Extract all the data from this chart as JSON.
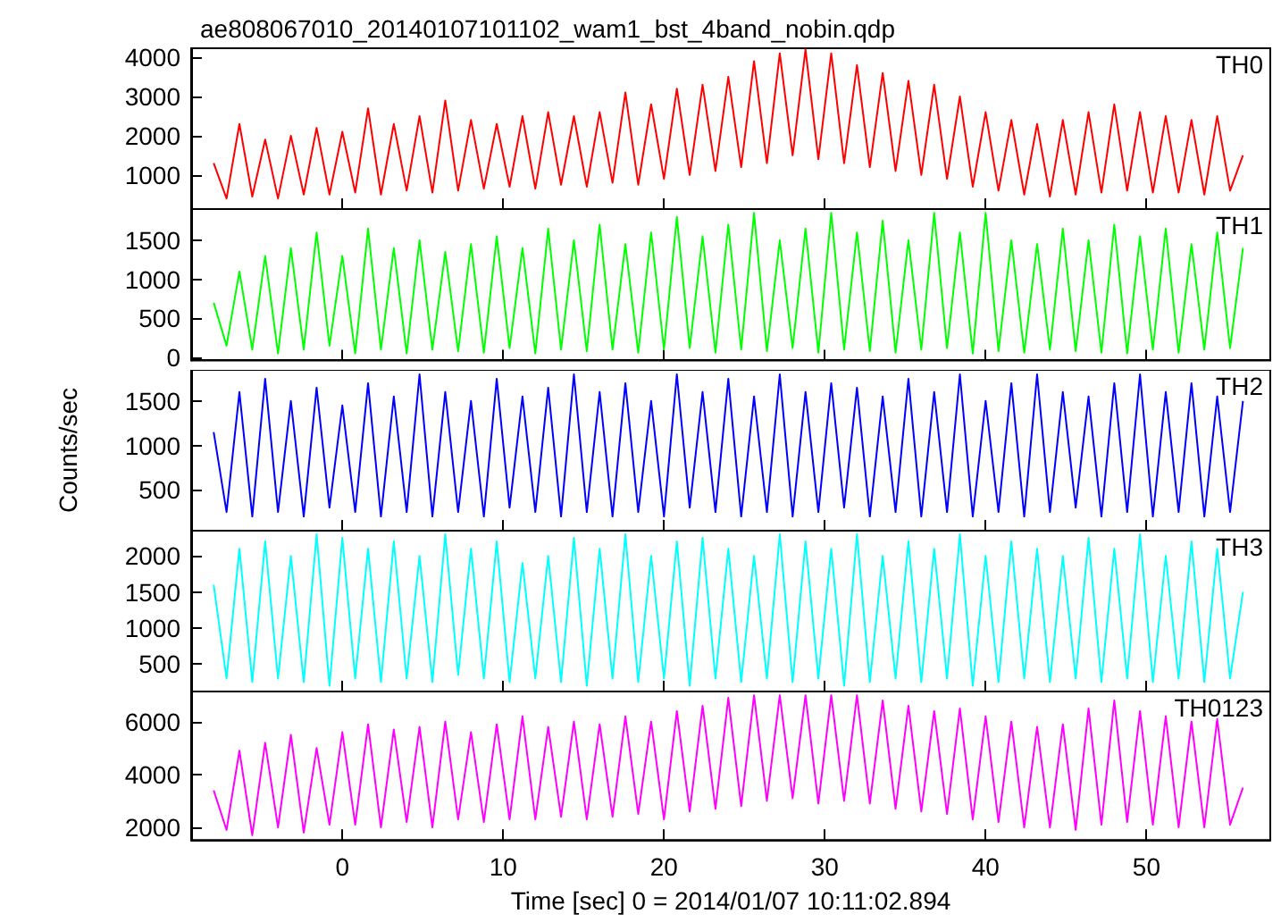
{
  "chart_data": [
    {
      "type": "line",
      "title": "ae808067010_20140107101102_wam1_bst_4band_nobin.qdp",
      "xlim": [
        -9.4,
        57.7
      ],
      "xticks": [
        0,
        10,
        20,
        30,
        40,
        50
      ],
      "ylim": [
        130,
        4230
      ],
      "yticks": [
        1000,
        2000,
        3000,
        4000
      ],
      "tick_labels": "y",
      "grid": false,
      "legend": false,
      "marker": "none",
      "x": [
        -8,
        -7.2,
        -6.4,
        -5.6,
        -4.8,
        -4,
        -3.2,
        -2.4,
        -1.6,
        -0.8,
        0,
        0.8,
        1.6,
        2.4,
        3.2,
        4,
        4.8,
        5.6,
        6.4,
        7.2,
        8,
        8.8,
        9.6,
        10.4,
        11.2,
        12,
        12.8,
        13.6,
        14.4,
        15.2,
        16,
        16.8,
        17.6,
        18.4,
        19.2,
        20,
        20.8,
        21.6,
        22.4,
        23.2,
        24,
        24.8,
        25.6,
        26.4,
        27.2,
        28,
        28.8,
        29.6,
        30.4,
        31.2,
        32,
        32.8,
        33.6,
        34.4,
        35.2,
        36,
        36.8,
        37.6,
        38.4,
        39.2,
        40,
        40.8,
        41.6,
        42.4,
        43.2,
        44,
        44.8,
        45.6,
        46.4,
        47.2,
        48,
        48.8,
        49.6,
        50.4,
        51.2,
        52,
        52.8,
        53.6,
        54.4,
        55.2,
        56
      ],
      "series": [
        {
          "name": "TH0",
          "color": "#ff0000",
          "values": [
            1300,
            400,
            2300,
            450,
            1900,
            400,
            2000,
            500,
            2200,
            500,
            2100,
            550,
            2700,
            500,
            2300,
            600,
            2500,
            550,
            2900,
            600,
            2400,
            650,
            2300,
            700,
            2500,
            650,
            2600,
            750,
            2500,
            700,
            2600,
            800,
            3100,
            750,
            2800,
            900,
            3200,
            1000,
            3300,
            1100,
            3500,
            1200,
            3900,
            1300,
            4100,
            1500,
            4200,
            1400,
            4100,
            1300,
            3800,
            1200,
            3600,
            1100,
            3400,
            1000,
            3300,
            900,
            3000,
            700,
            2600,
            600,
            2400,
            500,
            2300,
            450,
            2400,
            500,
            2600,
            550,
            2800,
            600,
            2600,
            550,
            2500,
            550,
            2400,
            500,
            2500,
            600,
            1500
          ]
        }
      ]
    },
    {
      "type": "line",
      "xlim": [
        -9.4,
        57.7
      ],
      "xticks": [
        0,
        10,
        20,
        30,
        40,
        50
      ],
      "ylim": [
        -40,
        1900
      ],
      "yticks": [
        0,
        500,
        1000,
        1500
      ],
      "tick_labels": "y",
      "grid": false,
      "legend": false,
      "marker": "none",
      "x": [
        -8,
        -7.2,
        -6.4,
        -5.6,
        -4.8,
        -4,
        -3.2,
        -2.4,
        -1.6,
        -0.8,
        0,
        0.8,
        1.6,
        2.4,
        3.2,
        4,
        4.8,
        5.6,
        6.4,
        7.2,
        8,
        8.8,
        9.6,
        10.4,
        11.2,
        12,
        12.8,
        13.6,
        14.4,
        15.2,
        16,
        16.8,
        17.6,
        18.4,
        19.2,
        20,
        20.8,
        21.6,
        22.4,
        23.2,
        24,
        24.8,
        25.6,
        26.4,
        27.2,
        28,
        28.8,
        29.6,
        30.4,
        31.2,
        32,
        32.8,
        33.6,
        34.4,
        35.2,
        36,
        36.8,
        37.6,
        38.4,
        39.2,
        40,
        40.8,
        41.6,
        42.4,
        43.2,
        44,
        44.8,
        45.6,
        46.4,
        47.2,
        48,
        48.8,
        49.6,
        50.4,
        51.2,
        52,
        52.8,
        53.6,
        54.4,
        55.2,
        56
      ],
      "series": [
        {
          "name": "TH1",
          "color": "#00ff00",
          "values": [
            700,
            150,
            1100,
            100,
            1300,
            50,
            1400,
            100,
            1600,
            150,
            1300,
            50,
            1650,
            100,
            1400,
            50,
            1500,
            100,
            1350,
            80,
            1450,
            60,
            1550,
            120,
            1400,
            50,
            1650,
            100,
            1500,
            80,
            1700,
            100,
            1450,
            60,
            1600,
            100,
            1800,
            120,
            1550,
            60,
            1700,
            100,
            1850,
            80,
            1500,
            120,
            1650,
            60,
            1850,
            100,
            1600,
            80,
            1750,
            60,
            1500,
            100,
            1850,
            120,
            1600,
            50,
            1850,
            80,
            1500,
            60,
            1450,
            100,
            1650,
            80,
            1500,
            60,
            1700,
            50,
            1550,
            100,
            1650,
            60,
            1450,
            100,
            1600,
            120,
            1400
          ]
        }
      ]
    },
    {
      "type": "line",
      "ylabel": "Counts/sec",
      "xlim": [
        -9.4,
        57.7
      ],
      "xticks": [
        0,
        10,
        20,
        30,
        40,
        50
      ],
      "ylim": [
        40,
        1850
      ],
      "yticks": [
        500,
        1000,
        1500
      ],
      "tick_labels": "y",
      "grid": false,
      "legend": false,
      "marker": "none",
      "x": [
        -8,
        -7.2,
        -6.4,
        -5.6,
        -4.8,
        -4,
        -3.2,
        -2.4,
        -1.6,
        -0.8,
        0,
        0.8,
        1.6,
        2.4,
        3.2,
        4,
        4.8,
        5.6,
        6.4,
        7.2,
        8,
        8.8,
        9.6,
        10.4,
        11.2,
        12,
        12.8,
        13.6,
        14.4,
        15.2,
        16,
        16.8,
        17.6,
        18.4,
        19.2,
        20,
        20.8,
        21.6,
        22.4,
        23.2,
        24,
        24.8,
        25.6,
        26.4,
        27.2,
        28,
        28.8,
        29.6,
        30.4,
        31.2,
        32,
        32.8,
        33.6,
        34.4,
        35.2,
        36,
        36.8,
        37.6,
        38.4,
        39.2,
        40,
        40.8,
        41.6,
        42.4,
        43.2,
        44,
        44.8,
        45.6,
        46.4,
        47.2,
        48,
        48.8,
        49.6,
        50.4,
        51.2,
        52,
        52.8,
        53.6,
        54.4,
        55.2,
        56
      ],
      "series": [
        {
          "name": "TH2",
          "color": "#0000ff",
          "values": [
            1150,
            250,
            1600,
            200,
            1750,
            250,
            1500,
            200,
            1650,
            300,
            1450,
            250,
            1700,
            200,
            1550,
            250,
            1800,
            200,
            1600,
            250,
            1500,
            200,
            1750,
            300,
            1550,
            250,
            1650,
            200,
            1800,
            250,
            1600,
            200,
            1700,
            250,
            1500,
            200,
            1800,
            300,
            1600,
            250,
            1750,
            200,
            1550,
            250,
            1800,
            200,
            1600,
            250,
            1700,
            300,
            1650,
            200,
            1550,
            250,
            1750,
            200,
            1600,
            250,
            1800,
            200,
            1500,
            250,
            1700,
            200,
            1800,
            250,
            1600,
            300,
            1550,
            200,
            1700,
            250,
            1800,
            200,
            1600,
            250,
            1700,
            200,
            1550,
            250,
            1500
          ]
        }
      ]
    },
    {
      "type": "line",
      "xlim": [
        -9.4,
        57.7
      ],
      "xticks": [
        0,
        10,
        20,
        30,
        40,
        50
      ],
      "ylim": [
        120,
        2350
      ],
      "yticks": [
        500,
        1000,
        1500,
        2000
      ],
      "tick_labels": "y",
      "grid": false,
      "legend": false,
      "marker": "none",
      "x": [
        -8,
        -7.2,
        -6.4,
        -5.6,
        -4.8,
        -4,
        -3.2,
        -2.4,
        -1.6,
        -0.8,
        0,
        0.8,
        1.6,
        2.4,
        3.2,
        4,
        4.8,
        5.6,
        6.4,
        7.2,
        8,
        8.8,
        9.6,
        10.4,
        11.2,
        12,
        12.8,
        13.6,
        14.4,
        15.2,
        16,
        16.8,
        17.6,
        18.4,
        19.2,
        20,
        20.8,
        21.6,
        22.4,
        23.2,
        24,
        24.8,
        25.6,
        26.4,
        27.2,
        28,
        28.8,
        29.6,
        30.4,
        31.2,
        32,
        32.8,
        33.6,
        34.4,
        35.2,
        36,
        36.8,
        37.6,
        38.4,
        39.2,
        40,
        40.8,
        41.6,
        42.4,
        43.2,
        44,
        44.8,
        45.6,
        46.4,
        47.2,
        48,
        48.8,
        49.6,
        50.4,
        51.2,
        52,
        52.8,
        53.6,
        54.4,
        55.2,
        56
      ],
      "series": [
        {
          "name": "TH3",
          "color": "#00ffff",
          "values": [
            1600,
            300,
            2100,
            250,
            2200,
            300,
            2000,
            250,
            2300,
            200,
            2250,
            300,
            2100,
            250,
            2200,
            300,
            2000,
            250,
            2300,
            350,
            2100,
            300,
            2200,
            250,
            1900,
            300,
            2000,
            250,
            2250,
            200,
            2100,
            300,
            2300,
            250,
            2000,
            300,
            2200,
            200,
            2250,
            300,
            2100,
            250,
            2000,
            300,
            2300,
            250,
            2200,
            300,
            2100,
            200,
            2300,
            250,
            2000,
            300,
            2200,
            250,
            2100,
            300,
            2300,
            200,
            2000,
            250,
            2200,
            300,
            2100,
            250,
            2000,
            300,
            2250,
            250,
            2100,
            300,
            2300,
            250,
            2000,
            300,
            2200,
            250,
            2100,
            300,
            1500
          ]
        }
      ]
    },
    {
      "type": "line",
      "xlabel": "Time [sec] 0 = 2014/01/07 10:11:02.894",
      "xlim": [
        -9.4,
        57.7
      ],
      "xticks": [
        0,
        10,
        20,
        30,
        40,
        50
      ],
      "ylim": [
        1520,
        7140
      ],
      "yticks": [
        2000,
        4000,
        6000
      ],
      "grid": false,
      "legend": false,
      "marker": "none",
      "x": [
        -8,
        -7.2,
        -6.4,
        -5.6,
        -4.8,
        -4,
        -3.2,
        -2.4,
        -1.6,
        -0.8,
        0,
        0.8,
        1.6,
        2.4,
        3.2,
        4,
        4.8,
        5.6,
        6.4,
        7.2,
        8,
        8.8,
        9.6,
        10.4,
        11.2,
        12,
        12.8,
        13.6,
        14.4,
        15.2,
        16,
        16.8,
        17.6,
        18.4,
        19.2,
        20,
        20.8,
        21.6,
        22.4,
        23.2,
        24,
        24.8,
        25.6,
        26.4,
        27.2,
        28,
        28.8,
        29.6,
        30.4,
        31.2,
        32,
        32.8,
        33.6,
        34.4,
        35.2,
        36,
        36.8,
        37.6,
        38.4,
        39.2,
        40,
        40.8,
        41.6,
        42.4,
        43.2,
        44,
        44.8,
        45.6,
        46.4,
        47.2,
        48,
        48.8,
        49.6,
        50.4,
        51.2,
        52,
        52.8,
        53.6,
        54.4,
        55.2,
        56
      ],
      "series": [
        {
          "name": "TH0123",
          "color": "#ff00ff",
          "values": [
            3400,
            1900,
            4900,
            1700,
            5200,
            2000,
            5500,
            1800,
            5000,
            2100,
            5600,
            2100,
            5900,
            2000,
            5700,
            2200,
            5800,
            2000,
            6000,
            2300,
            5600,
            2200,
            5900,
            2300,
            6200,
            2300,
            5800,
            2400,
            6000,
            2300,
            5900,
            2400,
            6200,
            2500,
            6000,
            2300,
            6400,
            2600,
            6600,
            2700,
            6900,
            2800,
            7000,
            3000,
            7000,
            3100,
            7000,
            2900,
            7000,
            3000,
            7000,
            2900,
            6800,
            2700,
            6600,
            2600,
            6400,
            2500,
            6500,
            2300,
            6200,
            2200,
            6000,
            2000,
            5800,
            2000,
            5900,
            1900,
            6500,
            2100,
            6800,
            2200,
            6400,
            2100,
            6200,
            2000,
            6000,
            2000,
            6100,
            2100,
            3500
          ]
        }
      ]
    }
  ]
}
